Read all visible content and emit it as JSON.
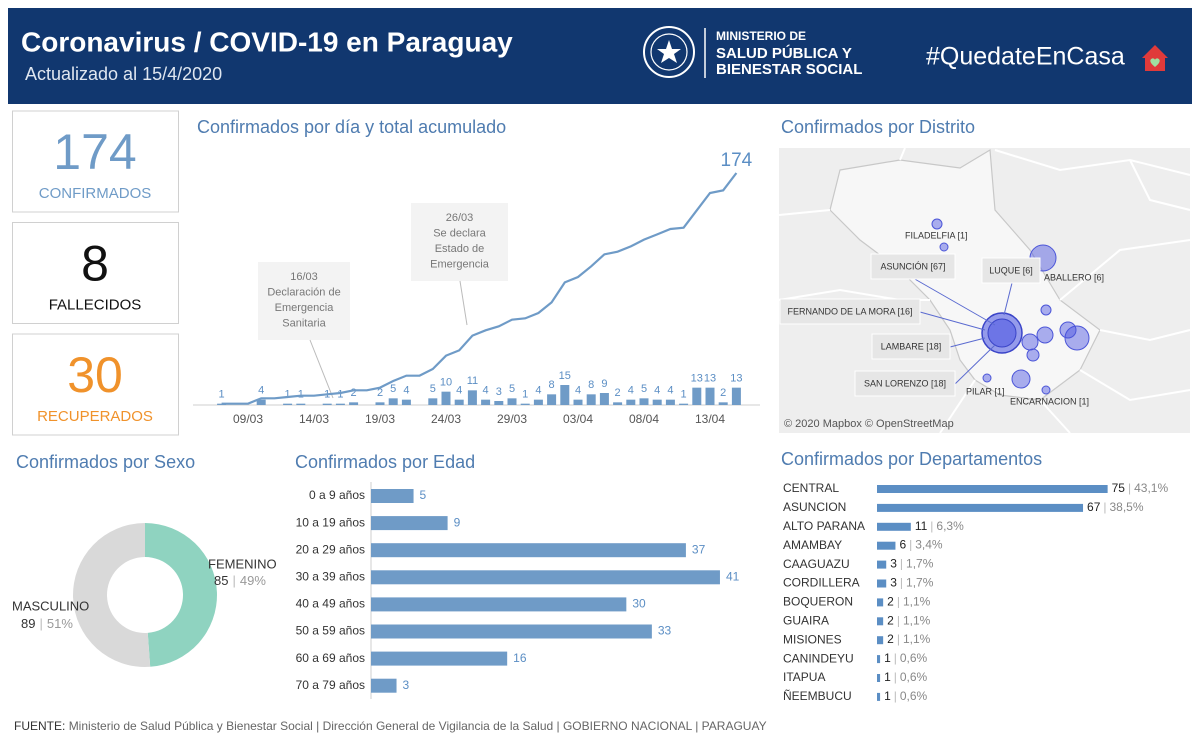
{
  "header": {
    "title": "Coronavirus / COVID-19 en Paraguay",
    "subtitle": "Actualizado al 15/4/2020",
    "ministry": [
      "MINISTERIO DE",
      "SALUD PÚBLICA Y",
      "BIENESTAR SOCIAL"
    ],
    "hashtag": "#QuedateEnCasa"
  },
  "kpis": [
    {
      "value": 174,
      "label": "CONFIRMADOS",
      "color": "#6f9bc7"
    },
    {
      "value": 8,
      "label": "FALLECIDOS",
      "color": "#111111"
    },
    {
      "value": 30,
      "label": "RECUPERADOS",
      "color": "#f0922b"
    }
  ],
  "chart_data": [
    {
      "type": "combo",
      "title": "Confirmados por día y total acumulado",
      "categories": [
        null,
        null,
        "09/03",
        null,
        null,
        null,
        null,
        "14/03",
        null,
        null,
        null,
        null,
        "19/03",
        null,
        null,
        null,
        null,
        "24/03",
        null,
        null,
        null,
        null,
        "29/03",
        null,
        null,
        null,
        null,
        "03/04",
        null,
        null,
        null,
        null,
        "08/04",
        null,
        null,
        null,
        null,
        "13/04",
        null,
        null
      ],
      "ylim": [
        0,
        180
      ],
      "series": [
        {
          "type": "bar",
          "color": "#6f9bc7",
          "values": [
            1,
            0,
            0,
            4,
            0,
            1,
            1,
            0,
            1,
            1,
            2,
            0,
            2,
            5,
            4,
            0,
            5,
            10,
            4,
            11,
            4,
            3,
            5,
            1,
            4,
            8,
            15,
            4,
            8,
            9,
            2,
            4,
            5,
            4,
            4,
            1,
            13,
            13,
            2,
            13
          ]
        },
        {
          "type": "line",
          "color": "#6f9bc7",
          "values": [
            1,
            1,
            1,
            5,
            5,
            6,
            7,
            7,
            8,
            9,
            11,
            11,
            13,
            18,
            22,
            22,
            27,
            37,
            41,
            52,
            56,
            59,
            64,
            65,
            69,
            77,
            92,
            96,
            104,
            113,
            115,
            119,
            124,
            128,
            132,
            133,
            146,
            159,
            161,
            174
          ]
        }
      ],
      "annotations": [
        [
          "16/03",
          "Declaración de",
          "Emergencia",
          "Sanitaria"
        ],
        [
          "26/03",
          "Se declara",
          "Estado de",
          "Emergencia"
        ]
      ]
    },
    {
      "type": "donut",
      "title": "Confirmados por Sexo",
      "categories": [
        "FEMENINO",
        "MASCULINO"
      ],
      "values": [
        85,
        89
      ],
      "percent_labels": [
        "49%",
        "51%"
      ],
      "separator": "|",
      "colors": [
        "#8fd3c0",
        "#d9d9d9"
      ]
    },
    {
      "type": "hbar",
      "title": "Confirmados por Edad",
      "categories": [
        "0 a 9 años",
        "10 a 19 años",
        "20 a 29 años",
        "30 a 39 años",
        "40 a 49 años",
        "50 a 59 años",
        "60 a 69 años",
        "70 a 79 años"
      ],
      "values": [
        5,
        9,
        37,
        41,
        30,
        33,
        16,
        3
      ],
      "xlim": [
        0,
        45
      ],
      "color": "#6f9bc7"
    },
    {
      "type": "hbar",
      "title": "Confirmados por Departamentos",
      "categories": [
        "CENTRAL",
        "ASUNCION",
        "ALTO PARANA",
        "AMAMBAY",
        "CAAGUAZU",
        "CORDILLERA",
        "BOQUERON",
        "GUAIRA",
        "MISIONES",
        "CANINDEYU",
        "ITAPUA",
        "ÑEEMBUCU"
      ],
      "values": [
        75,
        67,
        11,
        6,
        3,
        3,
        2,
        2,
        2,
        1,
        1,
        1
      ],
      "percent_labels": [
        "43,1%",
        "38,5%",
        "6,3%",
        "3,4%",
        "1,7%",
        "1,7%",
        "1,1%",
        "1,1%",
        "1,1%",
        "0,6%",
        "0,6%",
        "0,6%"
      ],
      "separator": "|",
      "xlim": [
        0,
        80
      ],
      "color": "#5b8ec4"
    }
  ],
  "map": {
    "title": "Confirmados por Distrito",
    "boxed_labels": [
      "ASUNCIÓN [67]",
      "LUQUE [6]",
      "FERNANDO DE LA MORA [16]",
      "LAMBARE [18]",
      "SAN LORENZO [18]"
    ],
    "labels": [
      "FILADELFIA [1]",
      "ABALLERO [6]",
      "PILAR [1]",
      "ENCARNACION [1]"
    ],
    "attribution": "© 2020 Mapbox © OpenStreetMap"
  },
  "footer": {
    "label": "FUENTE:",
    "text": "Ministerio de Salud Pública y Bienestar Social | Dirección General de Vigilancia de la Salud | GOBIERNO NACIONAL | PARAGUAY"
  }
}
